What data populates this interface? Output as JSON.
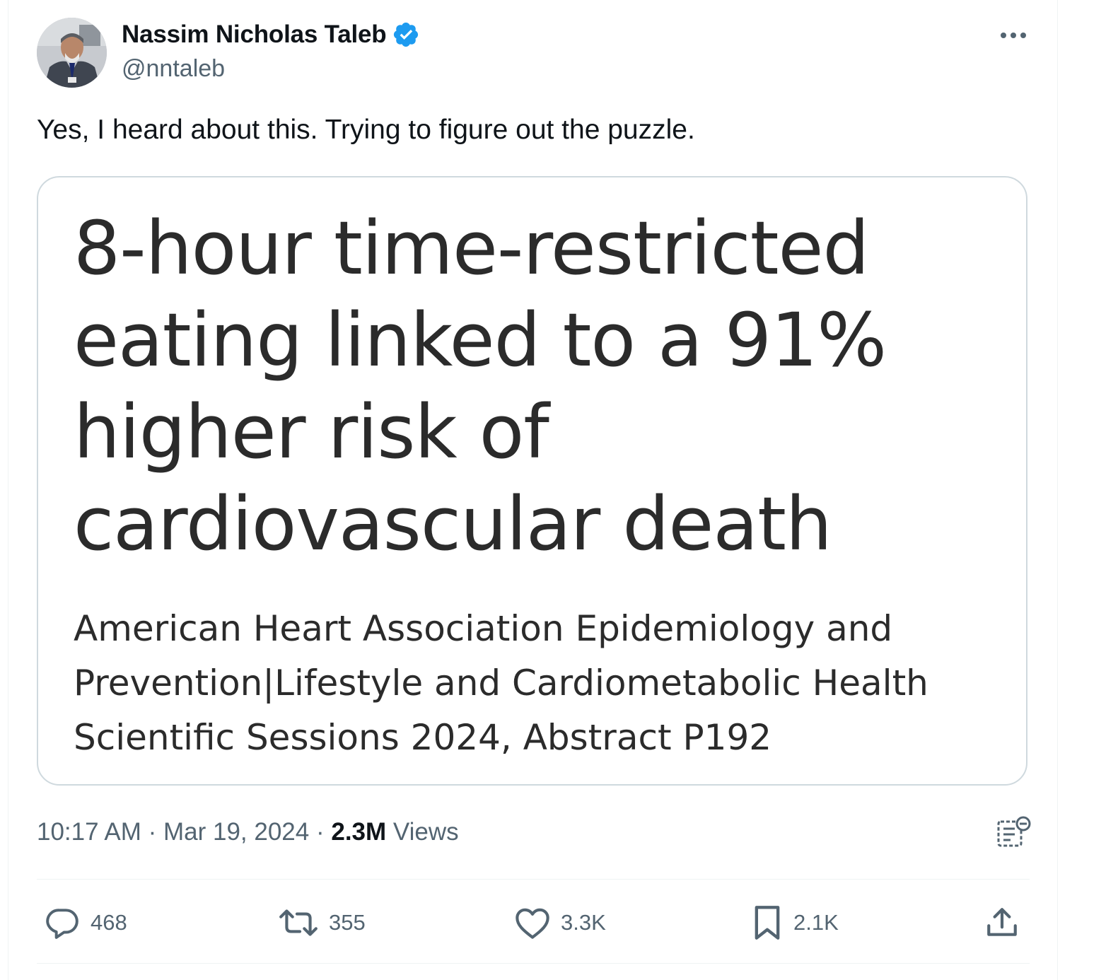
{
  "author": {
    "display_name": "Nassim Nicholas Taleb",
    "handle": "@nntaleb",
    "verified": true,
    "verified_color": "#1d9bf0"
  },
  "tweet": {
    "text": "Yes, I heard about this. Trying to figure out the puzzle."
  },
  "card": {
    "headline": "8-hour time-restricted eating linked to a 91% higher risk of cardiovascular death",
    "source": "American Heart Association Epidemiology and Prevention|Lifestyle and Cardiometabolic Health Scientific Sessions 2024, Abstract P192"
  },
  "meta": {
    "time": "10:17 AM",
    "separator": " · ",
    "date": "Mar 19, 2024",
    "views_count": "2.3M",
    "views_label": "Views"
  },
  "actions": {
    "replies": "468",
    "reposts": "355",
    "likes": "3.3K",
    "bookmarks": "2.1K"
  },
  "icons": {
    "more": "more-horizontal-icon",
    "analytics": "analytics-icon",
    "reply": "reply-icon",
    "repost": "repost-icon",
    "like": "heart-icon",
    "bookmark": "bookmark-icon",
    "share": "share-icon"
  },
  "colors": {
    "text_primary": "#0f1419",
    "text_secondary": "#536471",
    "border": "#cfd9de",
    "accent": "#1d9bf0"
  }
}
